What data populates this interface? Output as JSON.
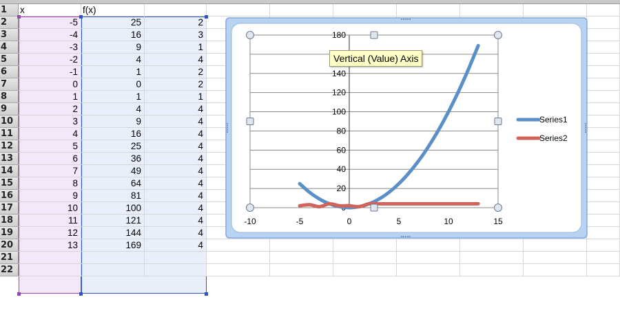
{
  "sheet": {
    "columns": {
      "a": "x",
      "b": "f(x)"
    },
    "rows": [
      {
        "num": "1",
        "a": "x",
        "b": "f(x)",
        "c": ""
      },
      {
        "num": "2",
        "a": "-5",
        "b": "25",
        "c": "2"
      },
      {
        "num": "3",
        "a": "-4",
        "b": "16",
        "c": "3"
      },
      {
        "num": "4",
        "a": "-3",
        "b": "9",
        "c": "1"
      },
      {
        "num": "5",
        "a": "-2",
        "b": "4",
        "c": "4"
      },
      {
        "num": "6",
        "a": "-1",
        "b": "1",
        "c": "2"
      },
      {
        "num": "7",
        "a": "0",
        "b": "0",
        "c": "2"
      },
      {
        "num": "8",
        "a": "1",
        "b": "1",
        "c": "1"
      },
      {
        "num": "9",
        "a": "2",
        "b": "4",
        "c": "4"
      },
      {
        "num": "10",
        "a": "3",
        "b": "9",
        "c": "4"
      },
      {
        "num": "11",
        "a": "4",
        "b": "16",
        "c": "4"
      },
      {
        "num": "12",
        "a": "5",
        "b": "25",
        "c": "4"
      },
      {
        "num": "13",
        "a": "6",
        "b": "36",
        "c": "4"
      },
      {
        "num": "14",
        "a": "7",
        "b": "49",
        "c": "4"
      },
      {
        "num": "15",
        "a": "8",
        "b": "64",
        "c": "4"
      },
      {
        "num": "16",
        "a": "9",
        "b": "81",
        "c": "4"
      },
      {
        "num": "17",
        "a": "10",
        "b": "100",
        "c": "4"
      },
      {
        "num": "18",
        "a": "11",
        "b": "121",
        "c": "4"
      },
      {
        "num": "19",
        "a": "12",
        "b": "144",
        "c": "4"
      },
      {
        "num": "20",
        "a": "13",
        "b": "169",
        "c": "4"
      },
      {
        "num": "21",
        "a": "",
        "b": "",
        "c": ""
      },
      {
        "num": "22",
        "a": "",
        "b": "",
        "c": ""
      }
    ]
  },
  "tooltip": "Vertical (Value) Axis",
  "colors": {
    "series1": "#5b8fc8",
    "series2": "#d0645a",
    "chart_border": "#7fa9e0"
  },
  "chart_data": {
    "type": "line",
    "x": [
      -5,
      -4,
      -3,
      -2,
      -1,
      0,
      1,
      2,
      3,
      4,
      5,
      6,
      7,
      8,
      9,
      10,
      11,
      12,
      13
    ],
    "series": [
      {
        "name": "Series1",
        "values": [
          25,
          16,
          9,
          4,
          1,
          0,
          1,
          4,
          9,
          16,
          25,
          36,
          49,
          64,
          81,
          100,
          121,
          144,
          169
        ]
      },
      {
        "name": "Series2",
        "values": [
          2,
          3,
          1,
          4,
          2,
          2,
          1,
          4,
          4,
          4,
          4,
          4,
          4,
          4,
          4,
          4,
          4,
          4,
          4
        ]
      }
    ],
    "xlim": [
      -10,
      15
    ],
    "ylim": [
      0,
      180
    ],
    "x_ticks": [
      "-10",
      "-5",
      "0",
      "5",
      "10",
      "15"
    ],
    "y_ticks": [
      "0",
      "20",
      "40",
      "60",
      "80",
      "100",
      "120",
      "140",
      "160",
      "180"
    ],
    "grid": true,
    "legend": "right",
    "title": "",
    "xlabel": "",
    "ylabel": ""
  }
}
